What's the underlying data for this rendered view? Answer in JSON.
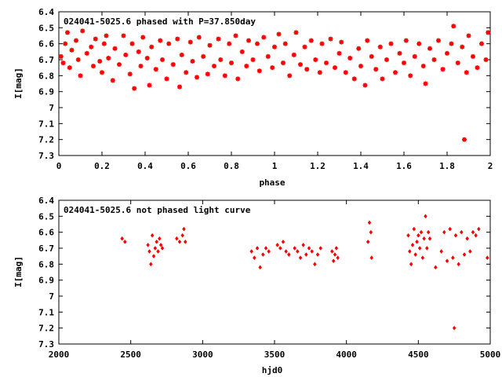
{
  "chart_data": [
    {
      "type": "scatter",
      "title": "024041-5025.6 phased with P=37.850day",
      "xlabel": "phase",
      "ylabel": "I[mag]",
      "xlim": [
        0,
        2
      ],
      "ylim": [
        6.4,
        7.3
      ],
      "y_inverted": true,
      "x_ticks": [
        "0",
        "0.2",
        "0.4",
        "0.6",
        "0.8",
        "1",
        "1.2",
        "1.4",
        "1.6",
        "1.8",
        "2"
      ],
      "y_ticks": [
        "6.4",
        "6.5",
        "6.6",
        "6.7",
        "6.8",
        "6.9",
        "7",
        "7.1",
        "7.2",
        "7.3"
      ],
      "marker": "star",
      "color": "#ff0000",
      "grid": false,
      "series": [
        {
          "points": [
            [
              0.01,
              6.68
            ],
            [
              0.02,
              6.72
            ],
            [
              0.03,
              6.6
            ],
            [
              0.04,
              6.53
            ],
            [
              0.05,
              6.75
            ],
            [
              0.06,
              6.64
            ],
            [
              0.08,
              6.58
            ],
            [
              0.09,
              6.7
            ],
            [
              0.1,
              6.8
            ],
            [
              0.11,
              6.52
            ],
            [
              0.13,
              6.66
            ],
            [
              0.15,
              6.62
            ],
            [
              0.16,
              6.74
            ],
            [
              0.17,
              6.57
            ],
            [
              0.19,
              6.71
            ],
            [
              0.2,
              6.78
            ],
            [
              0.21,
              6.6
            ],
            [
              0.22,
              6.55
            ],
            [
              0.23,
              6.69
            ],
            [
              0.25,
              6.83
            ],
            [
              0.26,
              6.63
            ],
            [
              0.28,
              6.73
            ],
            [
              0.3,
              6.55
            ],
            [
              0.31,
              6.67
            ],
            [
              0.33,
              6.79
            ],
            [
              0.34,
              6.6
            ],
            [
              0.35,
              6.88
            ],
            [
              0.37,
              6.65
            ],
            [
              0.38,
              6.74
            ],
            [
              0.39,
              6.56
            ],
            [
              0.41,
              6.69
            ],
            [
              0.42,
              6.86
            ],
            [
              0.43,
              6.62
            ],
            [
              0.45,
              6.76
            ],
            [
              0.47,
              6.58
            ],
            [
              0.48,
              6.7
            ],
            [
              0.5,
              6.82
            ],
            [
              0.51,
              6.6
            ],
            [
              0.53,
              6.73
            ],
            [
              0.55,
              6.57
            ],
            [
              0.56,
              6.87
            ],
            [
              0.57,
              6.67
            ],
            [
              0.59,
              6.78
            ],
            [
              0.61,
              6.59
            ],
            [
              0.62,
              6.71
            ],
            [
              0.64,
              6.81
            ],
            [
              0.65,
              6.56
            ],
            [
              0.67,
              6.68
            ],
            [
              0.69,
              6.79
            ],
            [
              0.7,
              6.61
            ],
            [
              0.72,
              6.74
            ],
            [
              0.74,
              6.57
            ],
            [
              0.75,
              6.7
            ],
            [
              0.77,
              6.8
            ],
            [
              0.79,
              6.6
            ],
            [
              0.8,
              6.72
            ],
            [
              0.82,
              6.55
            ],
            [
              0.83,
              6.82
            ],
            [
              0.85,
              6.65
            ],
            [
              0.87,
              6.74
            ],
            [
              0.88,
              6.58
            ],
            [
              0.9,
              6.7
            ],
            [
              0.92,
              6.6
            ],
            [
              0.93,
              6.77
            ],
            [
              0.95,
              6.56
            ],
            [
              0.97,
              6.68
            ],
            [
              0.99,
              6.75
            ],
            [
              1.0,
              6.62
            ],
            [
              1.02,
              6.54
            ],
            [
              1.04,
              6.72
            ],
            [
              1.05,
              6.6
            ],
            [
              1.07,
              6.8
            ],
            [
              1.09,
              6.67
            ],
            [
              1.1,
              6.53
            ],
            [
              1.12,
              6.73
            ],
            [
              1.14,
              6.62
            ],
            [
              1.15,
              6.76
            ],
            [
              1.17,
              6.58
            ],
            [
              1.19,
              6.7
            ],
            [
              1.21,
              6.78
            ],
            [
              1.22,
              6.6
            ],
            [
              1.24,
              6.72
            ],
            [
              1.26,
              6.57
            ],
            [
              1.28,
              6.75
            ],
            [
              1.3,
              6.66
            ],
            [
              1.31,
              6.59
            ],
            [
              1.33,
              6.78
            ],
            [
              1.35,
              6.69
            ],
            [
              1.37,
              6.82
            ],
            [
              1.39,
              6.63
            ],
            [
              1.4,
              6.74
            ],
            [
              1.42,
              6.86
            ],
            [
              1.43,
              6.58
            ],
            [
              1.45,
              6.68
            ],
            [
              1.47,
              6.76
            ],
            [
              1.49,
              6.62
            ],
            [
              1.5,
              6.82
            ],
            [
              1.52,
              6.7
            ],
            [
              1.54,
              6.6
            ],
            [
              1.56,
              6.78
            ],
            [
              1.58,
              6.66
            ],
            [
              1.6,
              6.72
            ],
            [
              1.61,
              6.58
            ],
            [
              1.63,
              6.8
            ],
            [
              1.65,
              6.68
            ],
            [
              1.67,
              6.6
            ],
            [
              1.69,
              6.74
            ],
            [
              1.7,
              6.85
            ],
            [
              1.72,
              6.63
            ],
            [
              1.74,
              6.7
            ],
            [
              1.76,
              6.58
            ],
            [
              1.78,
              6.76
            ],
            [
              1.8,
              6.66
            ],
            [
              1.82,
              6.6
            ],
            [
              1.83,
              6.49
            ],
            [
              1.85,
              6.72
            ],
            [
              1.87,
              6.62
            ],
            [
              1.88,
              7.2
            ],
            [
              1.89,
              6.78
            ],
            [
              1.9,
              6.55
            ],
            [
              1.92,
              6.68
            ],
            [
              1.94,
              6.75
            ],
            [
              1.96,
              6.6
            ],
            [
              1.98,
              6.7
            ],
            [
              1.99,
              6.53
            ]
          ]
        }
      ]
    },
    {
      "type": "scatter",
      "title": "024041-5025.6 not phased light curve",
      "xlabel": "hjd0",
      "ylabel": "I[mag]",
      "xlim": [
        2000,
        5000
      ],
      "ylim": [
        6.4,
        7.3
      ],
      "y_inverted": true,
      "x_ticks": [
        "2000",
        "2500",
        "3000",
        "3500",
        "4000",
        "4500",
        "5000"
      ],
      "y_ticks": [
        "6.4",
        "6.5",
        "6.6",
        "6.7",
        "6.8",
        "6.9",
        "7",
        "7.1",
        "7.2",
        "7.3"
      ],
      "marker": "diamond",
      "color": "#ff0000",
      "grid": false,
      "series": [
        {
          "points": [
            [
              2440,
              6.64
            ],
            [
              2460,
              6.66
            ],
            [
              2620,
              6.68
            ],
            [
              2630,
              6.72
            ],
            [
              2640,
              6.8
            ],
            [
              2650,
              6.62
            ],
            [
              2660,
              6.75
            ],
            [
              2670,
              6.7
            ],
            [
              2680,
              6.66
            ],
            [
              2690,
              6.72
            ],
            [
              2700,
              6.64
            ],
            [
              2710,
              6.68
            ],
            [
              2720,
              6.7
            ],
            [
              2820,
              6.64
            ],
            [
              2840,
              6.66
            ],
            [
              2860,
              6.62
            ],
            [
              2870,
              6.58
            ],
            [
              2880,
              6.66
            ],
            [
              3340,
              6.72
            ],
            [
              3360,
              6.76
            ],
            [
              3380,
              6.7
            ],
            [
              3400,
              6.82
            ],
            [
              3420,
              6.74
            ],
            [
              3440,
              6.7
            ],
            [
              3460,
              6.72
            ],
            [
              3520,
              6.68
            ],
            [
              3540,
              6.7
            ],
            [
              3560,
              6.66
            ],
            [
              3580,
              6.72
            ],
            [
              3600,
              6.74
            ],
            [
              3640,
              6.7
            ],
            [
              3660,
              6.72
            ],
            [
              3680,
              6.76
            ],
            [
              3700,
              6.68
            ],
            [
              3720,
              6.74
            ],
            [
              3740,
              6.7
            ],
            [
              3760,
              6.72
            ],
            [
              3780,
              6.8
            ],
            [
              3800,
              6.74
            ],
            [
              3820,
              6.7
            ],
            [
              3900,
              6.72
            ],
            [
              3910,
              6.78
            ],
            [
              3920,
              6.74
            ],
            [
              3930,
              6.7
            ],
            [
              3940,
              6.76
            ],
            [
              4150,
              6.66
            ],
            [
              4160,
              6.54
            ],
            [
              4170,
              6.6
            ],
            [
              4175,
              6.76
            ],
            [
              4430,
              6.62
            ],
            [
              4440,
              6.72
            ],
            [
              4450,
              6.8
            ],
            [
              4460,
              6.68
            ],
            [
              4470,
              6.58
            ],
            [
              4480,
              6.74
            ],
            [
              4490,
              6.66
            ],
            [
              4500,
              6.62
            ],
            [
              4510,
              6.7
            ],
            [
              4520,
              6.6
            ],
            [
              4530,
              6.76
            ],
            [
              4540,
              6.64
            ],
            [
              4550,
              6.5
            ],
            [
              4560,
              6.7
            ],
            [
              4570,
              6.6
            ],
            [
              4580,
              6.64
            ],
            [
              4620,
              6.82
            ],
            [
              4660,
              6.72
            ],
            [
              4680,
              6.6
            ],
            [
              4700,
              6.78
            ],
            [
              4720,
              6.58
            ],
            [
              4740,
              6.76
            ],
            [
              4750,
              7.2
            ],
            [
              4760,
              6.62
            ],
            [
              4780,
              6.8
            ],
            [
              4800,
              6.6
            ],
            [
              4820,
              6.74
            ],
            [
              4840,
              6.64
            ],
            [
              4860,
              6.72
            ],
            [
              4880,
              6.6
            ],
            [
              4900,
              6.62
            ],
            [
              4920,
              6.58
            ],
            [
              4980,
              6.76
            ]
          ]
        }
      ]
    }
  ]
}
